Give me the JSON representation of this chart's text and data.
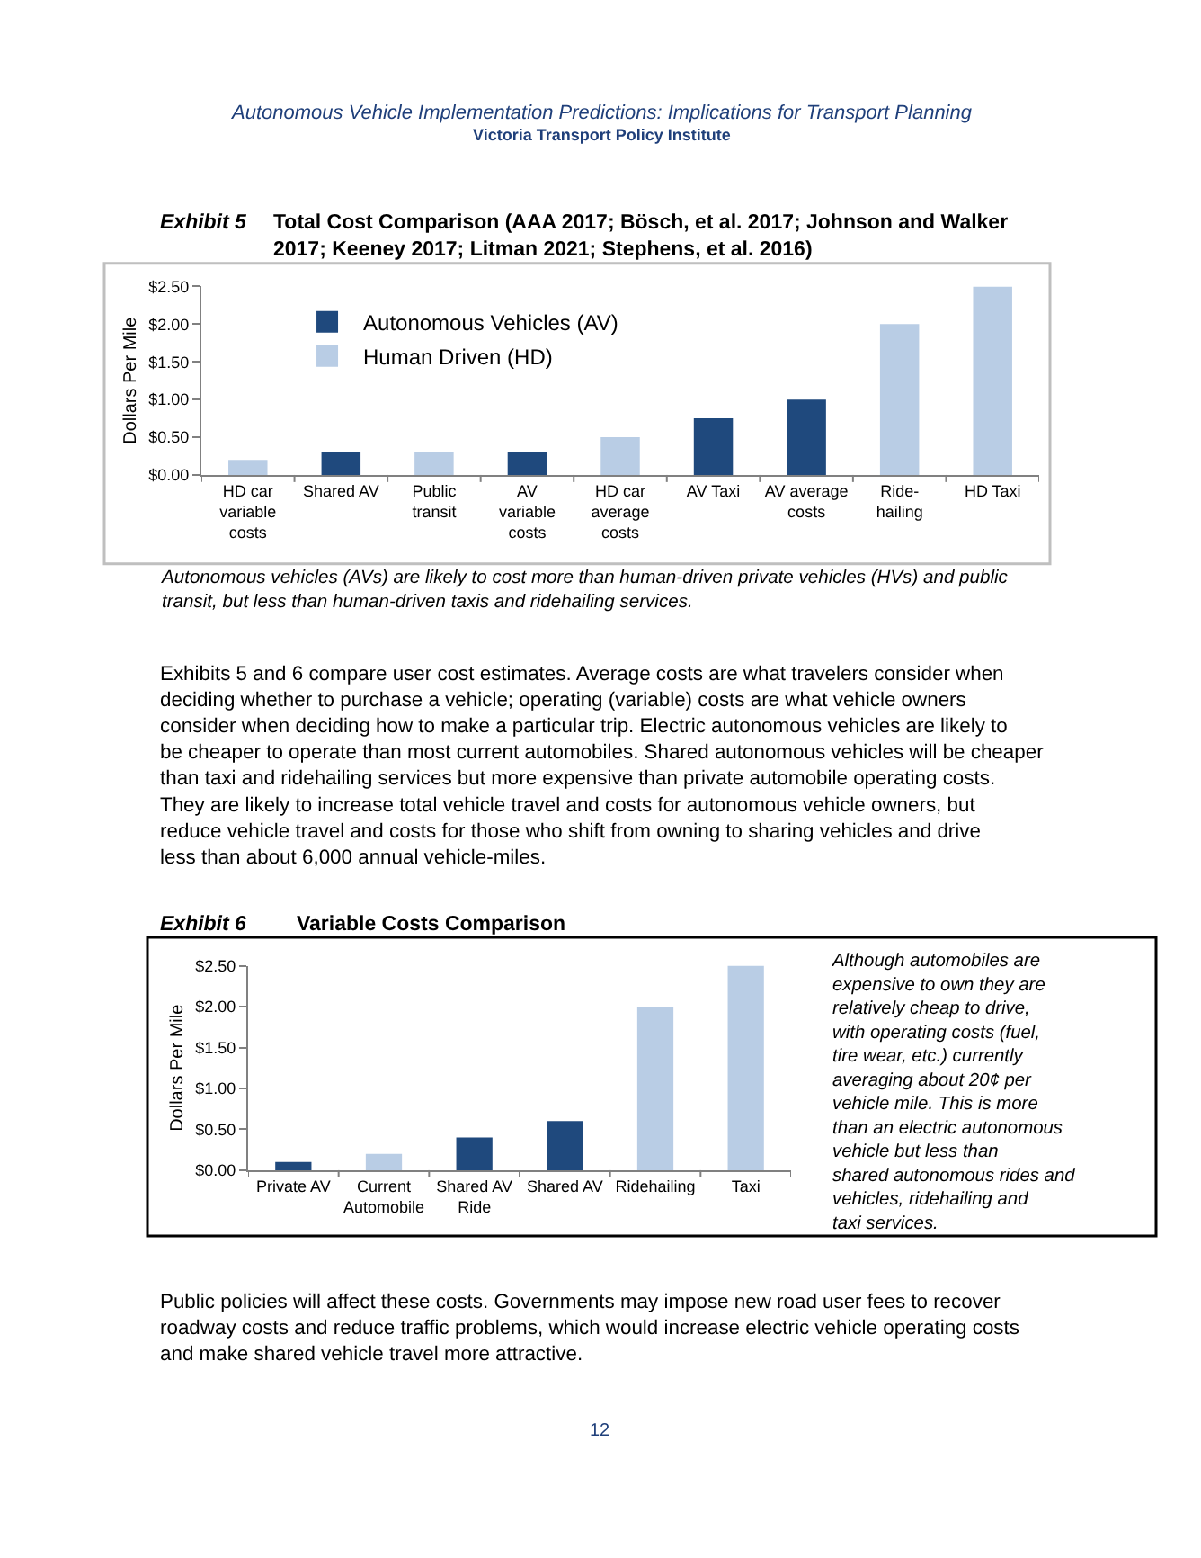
{
  "chart_data": [
    {
      "type": "bar",
      "title": "Exhibit 5",
      "subtitle": "Total Cost Comparison (AAA 2017; Bösch, et al. 2017; Johnson and Walker 2017; Keeney 2017; Litman 2021; Stephens, et al. 2016)",
      "ylabel": "Dollars Per Mile",
      "categories": [
        "HD car variable costs",
        "Shared AV",
        "Public transit",
        "AV variable costs",
        "HD car average costs",
        "AV Taxi",
        "AV average costs",
        "Ride-hailing",
        "HD Taxi"
      ],
      "series": [
        {
          "name": "Autonomous Vehicles (AV)",
          "color": "#1f497d",
          "values": [
            null,
            0.3,
            null,
            0.3,
            null,
            0.75,
            1.0,
            null,
            null
          ]
        },
        {
          "name": "Human Driven (HD)",
          "color": "#b9cde5",
          "values": [
            0.2,
            null,
            0.3,
            null,
            0.5,
            null,
            null,
            2.0,
            2.5
          ]
        }
      ],
      "ylim": [
        0,
        2.5
      ],
      "yticks": [
        {
          "value": 0,
          "label": "$0.00"
        },
        {
          "value": 0.5,
          "label": "$0.50"
        },
        {
          "value": 1,
          "label": "$1.00"
        },
        {
          "value": 1.5,
          "label": "$1.50"
        },
        {
          "value": 2,
          "label": "$2.00"
        },
        {
          "value": 2.5,
          "label": "$2.50"
        }
      ],
      "legend": "top left",
      "annotations": [
        "Autonomous Vehicle Implementation Predictions: Implications for Transport Planning",
        "Victoria Transport Policy Institute",
        "Autonomous vehicles (AVs) are likely to cost more than human-driven private vehicles (HVs) and public transit, but less than human-driven taxis and ridehailing services.",
        "Exhibits 5 and 6 compare user cost estimates. Average costs are what travelers consider when deciding whether to purchase a vehicle; operating (variable) costs are what vehicle owners consider when deciding how to make a particular trip. Electric autonomous vehicles are likely to be cheaper to operate than most current automobiles. Shared autonomous vehicles will be cheaper than taxi and ridehailing services but more expensive than private automobile operating costs. They are likely to increase total vehicle travel and costs for autonomous vehicle owners, but reduce vehicle travel and costs for those who shift from owning to sharing vehicles and drive less than about 6,000 annual vehicle-miles."
      ]
    },
    {
      "type": "bar",
      "title": "Exhibit 6",
      "subtitle": "Variable Costs Comparison",
      "ylabel": "Dollars Per Mile",
      "categories": [
        "Private AV",
        "Current Automobile",
        "Shared AV Ride",
        "Shared AV",
        "Ridehailing",
        "Taxi"
      ],
      "values": [
        0.1,
        0.2,
        0.4,
        0.6,
        2.0,
        2.5
      ],
      "colors": [
        "#1f497d",
        "#b9cde5",
        "#1f497d",
        "#1f497d",
        "#b9cde5",
        "#b9cde5"
      ],
      "ylim": [
        0,
        2.5
      ],
      "yticks": [
        {
          "value": 0,
          "label": "$0.00"
        },
        {
          "value": 0.5,
          "label": "$0.50"
        },
        {
          "value": 1,
          "label": "$1.00"
        },
        {
          "value": 1.5,
          "label": "$1.50"
        },
        {
          "value": 2,
          "label": "$2.00"
        },
        {
          "value": 2.5,
          "label": "$2.50"
        }
      ],
      "annotations": [
        "Although automobiles are expensive to own they are relatively cheap to drive, with operating costs (fuel, tire wear, etc.) currently averaging about 20¢ per vehicle mile. This is more than an electric autonomous vehicle but less than shared autonomous rides and vehicles, ridehailing and taxi services.",
        "Public policies will affect these costs. Governments may impose new road user fees to recover roadway costs and reduce traffic problems, which would increase electric vehicle operating costs and make shared vehicle travel more attractive.",
        "12"
      ]
    }
  ]
}
